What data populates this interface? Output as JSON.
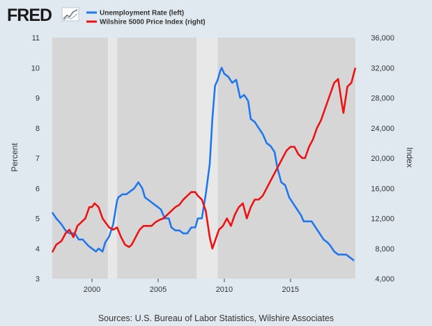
{
  "logo": {
    "text": "FRED"
  },
  "source": "Sources: U.S. Bureau of Labor Statistics, Wilshire Associates",
  "colors": {
    "background": "#e1e9f0",
    "plot_background": "#d6d6d6",
    "recession": "#e8e8e8",
    "series_left": "#1f77f0",
    "series_right": "#ee1111"
  },
  "chart_data": {
    "type": "line",
    "title": "",
    "xlabel": "",
    "ylabel_left": "Percent",
    "ylabel_right": "Index",
    "x_range": [
      1997.0,
      2019.9
    ],
    "x_ticks": [
      2000,
      2005,
      2010,
      2015
    ],
    "x_tick_labels": [
      "2000",
      "2005",
      "2010",
      "2015"
    ],
    "y_left_range": [
      3,
      11
    ],
    "y_left_ticks": [
      3,
      4,
      5,
      6,
      7,
      8,
      9,
      10,
      11
    ],
    "y_left_tick_labels": [
      "3",
      "4",
      "5",
      "6",
      "7",
      "8",
      "9",
      "10",
      "11"
    ],
    "y_right_range": [
      4000,
      36000
    ],
    "y_right_ticks": [
      4000,
      8000,
      12000,
      16000,
      20000,
      24000,
      28000,
      32000,
      36000
    ],
    "y_right_tick_labels": [
      "4,000",
      "8,000",
      "12,000",
      "16,000",
      "20,000",
      "24,000",
      "28,000",
      "32,000",
      "36,000"
    ],
    "grid": false,
    "legend_position": "top",
    "recessions": [
      [
        2001.2,
        2001.9
      ],
      [
        2007.9,
        2009.5
      ]
    ],
    "series": [
      {
        "name": "Unemployment Rate (left)",
        "axis": "left",
        "x": [
          1997.0,
          1997.3,
          1997.7,
          1998.0,
          1998.3,
          1998.7,
          1999.0,
          1999.3,
          1999.7,
          2000.0,
          2000.3,
          2000.5,
          2000.8,
          2001.0,
          2001.3,
          2001.6,
          2001.9,
          2002.0,
          2002.3,
          2002.6,
          2002.9,
          2003.2,
          2003.5,
          2003.8,
          2004.0,
          2004.3,
          2004.6,
          2004.9,
          2005.2,
          2005.5,
          2005.8,
          2006.0,
          2006.3,
          2006.6,
          2006.9,
          2007.2,
          2007.5,
          2007.8,
          2008.0,
          2008.3,
          2008.6,
          2008.9,
          2009.1,
          2009.3,
          2009.5,
          2009.7,
          2009.8,
          2010.0,
          2010.3,
          2010.6,
          2010.9,
          2011.2,
          2011.5,
          2011.8,
          2012.0,
          2012.3,
          2012.6,
          2012.9,
          2013.2,
          2013.5,
          2013.8,
          2014.0,
          2014.3,
          2014.6,
          2014.9,
          2015.2,
          2015.5,
          2015.8,
          2016.0,
          2016.3,
          2016.6,
          2016.9,
          2017.2,
          2017.5,
          2017.8,
          2018.0,
          2018.3,
          2018.6,
          2018.9,
          2019.2,
          2019.5,
          2019.8
        ],
        "y": [
          5.2,
          5.0,
          4.8,
          4.6,
          4.5,
          4.5,
          4.3,
          4.3,
          4.1,
          4.0,
          3.9,
          4.0,
          3.9,
          4.2,
          4.4,
          4.8,
          5.6,
          5.7,
          5.8,
          5.8,
          5.9,
          6.0,
          6.2,
          6.0,
          5.7,
          5.6,
          5.5,
          5.4,
          5.3,
          5.0,
          5.0,
          4.7,
          4.6,
          4.6,
          4.5,
          4.5,
          4.7,
          4.7,
          5.0,
          5.0,
          5.8,
          6.8,
          8.3,
          9.4,
          9.6,
          9.9,
          10.0,
          9.8,
          9.7,
          9.5,
          9.6,
          9.0,
          9.1,
          8.9,
          8.3,
          8.2,
          8.0,
          7.8,
          7.5,
          7.4,
          7.2,
          6.7,
          6.2,
          6.1,
          5.7,
          5.5,
          5.3,
          5.1,
          4.9,
          4.9,
          4.9,
          4.7,
          4.5,
          4.3,
          4.2,
          4.1,
          3.9,
          3.8,
          3.8,
          3.8,
          3.7,
          3.6
        ]
      },
      {
        "name": "Wilshire 5000 Price Index (right)",
        "axis": "right",
        "x": [
          1997.0,
          1997.3,
          1997.7,
          1998.0,
          1998.3,
          1998.6,
          1998.9,
          1999.2,
          1999.5,
          1999.8,
          2000.0,
          2000.2,
          2000.5,
          2000.8,
          2001.0,
          2001.3,
          2001.6,
          2001.9,
          2002.2,
          2002.5,
          2002.8,
          2003.0,
          2003.3,
          2003.6,
          2003.9,
          2004.2,
          2004.5,
          2004.8,
          2005.1,
          2005.4,
          2005.7,
          2006.0,
          2006.3,
          2006.6,
          2006.9,
          2007.2,
          2007.5,
          2007.8,
          2008.0,
          2008.3,
          2008.6,
          2008.9,
          2009.1,
          2009.3,
          2009.6,
          2009.9,
          2010.2,
          2010.5,
          2010.8,
          2011.1,
          2011.4,
          2011.7,
          2012.0,
          2012.3,
          2012.6,
          2012.9,
          2013.2,
          2013.5,
          2013.8,
          2014.1,
          2014.4,
          2014.7,
          2015.0,
          2015.3,
          2015.6,
          2015.9,
          2016.1,
          2016.4,
          2016.7,
          2017.0,
          2017.3,
          2017.6,
          2017.9,
          2018.1,
          2018.3,
          2018.6,
          2018.9,
          2019.0,
          2019.3,
          2019.6,
          2019.9
        ],
        "y": [
          7500,
          8500,
          9000,
          10000,
          10500,
          9500,
          11000,
          11500,
          12000,
          13500,
          13500,
          14000,
          13500,
          12000,
          11500,
          10800,
          10500,
          10800,
          9500,
          8500,
          8200,
          8500,
          9500,
          10500,
          11000,
          11000,
          11000,
          11500,
          11800,
          12000,
          12500,
          13000,
          13500,
          13800,
          14500,
          15000,
          15500,
          15500,
          15000,
          14500,
          13000,
          9500,
          8000,
          9000,
          10500,
          11000,
          12000,
          11000,
          12500,
          13500,
          14000,
          12000,
          13500,
          14500,
          14500,
          15000,
          16000,
          17000,
          18000,
          19000,
          20000,
          21000,
          21500,
          21500,
          20500,
          20000,
          20000,
          21500,
          22500,
          24000,
          25000,
          26500,
          28000,
          29000,
          30000,
          30500,
          27000,
          26000,
          29500,
          30000,
          32000
        ]
      }
    ]
  }
}
